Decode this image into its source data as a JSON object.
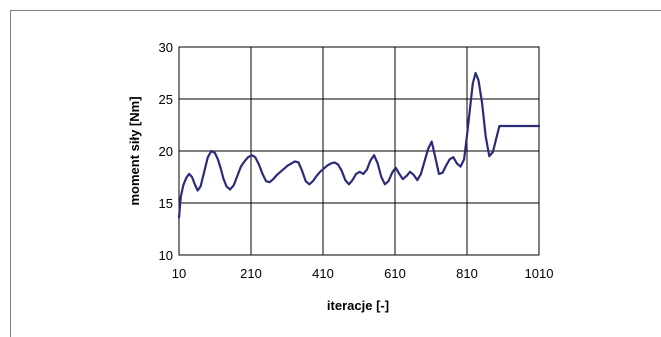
{
  "chart_data": {
    "type": "line",
    "title": "",
    "xlabel": "iteracje [-]",
    "ylabel": "moment siły [Nm]",
    "xlim": [
      10,
      1010
    ],
    "ylim": [
      10,
      30
    ],
    "x_ticks": [
      "10",
      "210",
      "410",
      "610",
      "810",
      "1010"
    ],
    "y_ticks": [
      "10",
      "15",
      "20",
      "25",
      "30"
    ],
    "grid": true,
    "legend": "none",
    "colors": {
      "line": "#2b2b7a",
      "grid": "#000000",
      "plot_bg": "#ffffff"
    },
    "series": [
      {
        "x": [
          10,
          15,
          22,
          30,
          38,
          46,
          54,
          62,
          70,
          80,
          90,
          100,
          110,
          118,
          126,
          134,
          142,
          152,
          162,
          172,
          182,
          192,
          202,
          212,
          222,
          232,
          242,
          252,
          262,
          272,
          282,
          292,
          302,
          312,
          322,
          332,
          342,
          352,
          362,
          372,
          382,
          392,
          402,
          412,
          422,
          432,
          442,
          452,
          462,
          472,
          482,
          492,
          502,
          512,
          522,
          532,
          542,
          552,
          562,
          572,
          582,
          592,
          602,
          612,
          622,
          632,
          642,
          652,
          662,
          672,
          682,
          692,
          702,
          712,
          722,
          732,
          742,
          752,
          762,
          772,
          782,
          792,
          802,
          810,
          818,
          826,
          834,
          842,
          852,
          862,
          872,
          882,
          892,
          900,
          908,
          914,
          920,
          926,
          932,
          938,
          944,
          950,
          956,
          962,
          968,
          974,
          980,
          986,
          992,
          998,
          1004,
          1010
        ],
        "values": [
          13.6,
          15.6,
          16.7,
          17.4,
          17.8,
          17.5,
          16.8,
          16.2,
          16.6,
          18.0,
          19.4,
          20.0,
          19.8,
          19.2,
          18.3,
          17.3,
          16.6,
          16.3,
          16.7,
          17.6,
          18.5,
          19.0,
          19.4,
          19.6,
          19.4,
          18.7,
          17.8,
          17.1,
          17.0,
          17.3,
          17.7,
          18.0,
          18.3,
          18.6,
          18.8,
          19.0,
          18.9,
          18.1,
          17.1,
          16.8,
          17.1,
          17.6,
          18.0,
          18.3,
          18.6,
          18.8,
          18.9,
          18.7,
          18.1,
          17.2,
          16.8,
          17.2,
          17.8,
          18.0,
          17.8,
          18.2,
          19.1,
          19.6,
          18.8,
          17.5,
          16.8,
          17.1,
          17.9,
          18.4,
          17.8,
          17.3,
          17.6,
          18.0,
          17.7,
          17.2,
          17.8,
          19.0,
          20.2,
          20.9,
          19.4,
          17.8,
          17.9,
          18.6,
          19.2,
          19.4,
          18.8,
          18.5,
          19.2,
          21.5,
          24.0,
          26.5,
          27.5,
          26.8,
          24.6,
          21.4,
          19.5,
          19.9,
          21.3,
          22.4,
          22.4,
          22.4,
          22.4,
          22.4,
          22.4,
          22.4,
          22.4,
          22.4,
          22.4,
          22.4,
          22.4,
          22.4,
          22.4,
          22.4,
          22.4,
          22.4,
          22.4,
          22.4
        ]
      }
    ]
  }
}
